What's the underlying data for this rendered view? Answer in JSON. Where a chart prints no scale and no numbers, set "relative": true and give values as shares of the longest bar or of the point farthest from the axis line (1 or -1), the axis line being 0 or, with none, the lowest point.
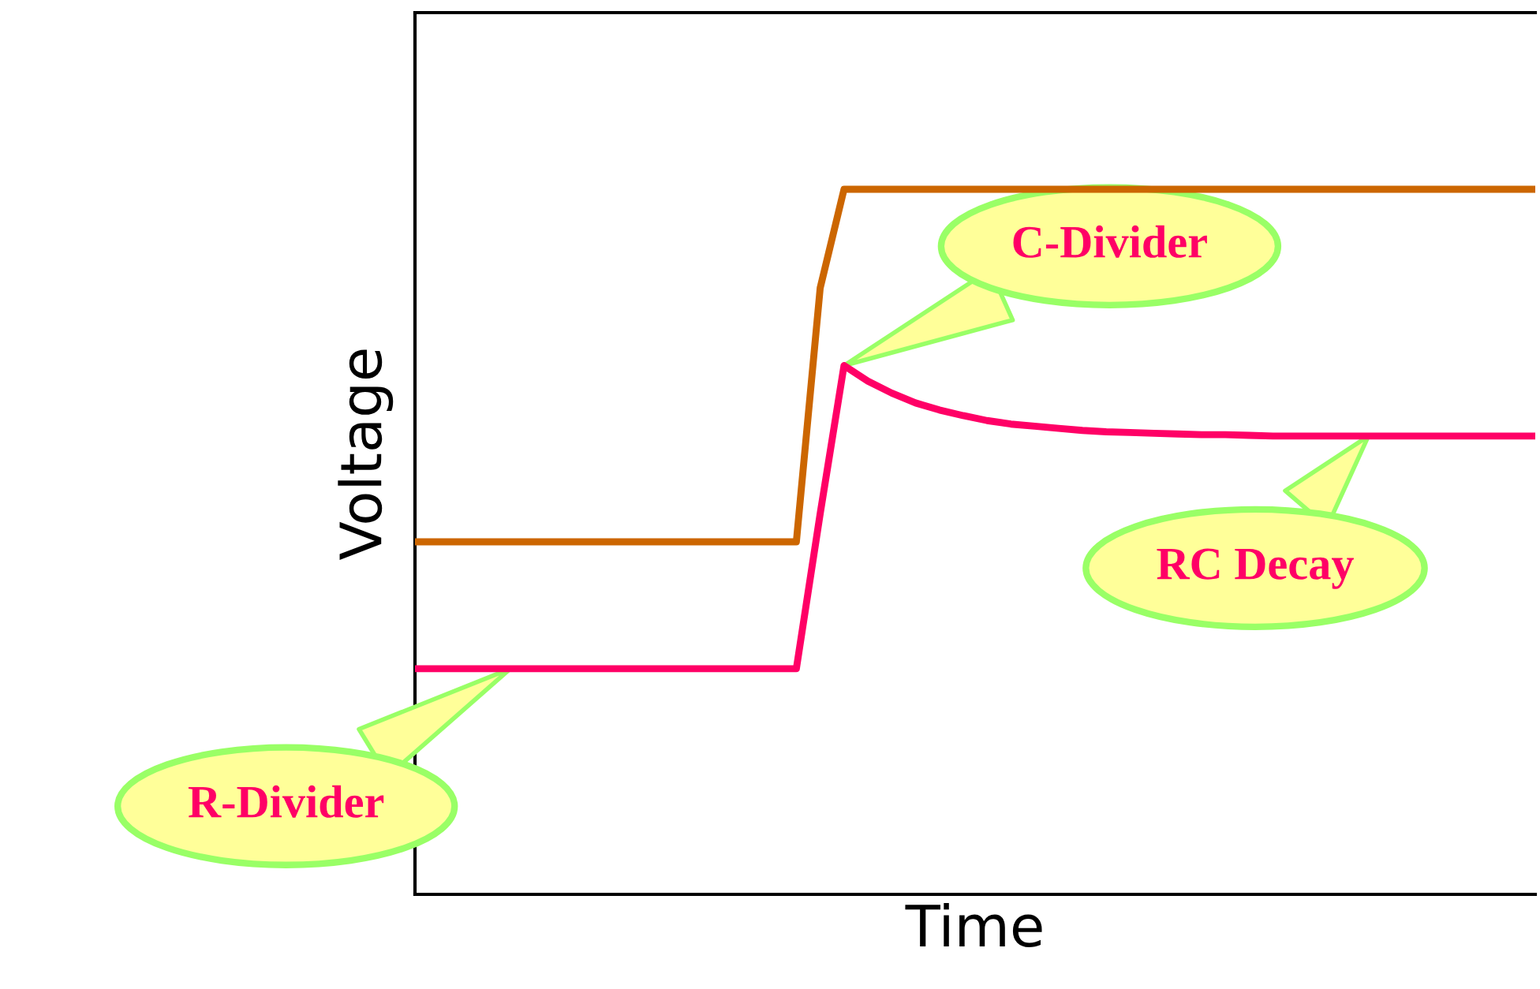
{
  "chart_data": {
    "type": "line",
    "relative": true,
    "xlabel": "Time",
    "ylabel": "Voltage",
    "categories": [
      null,
      null,
      null,
      null,
      null,
      null,
      null,
      null,
      null,
      null,
      null,
      null,
      null,
      null,
      null,
      null,
      null,
      null,
      null,
      null,
      null,
      null,
      null,
      null,
      null,
      null,
      null,
      null,
      null,
      null,
      null,
      null,
      null,
      null,
      null,
      null,
      null,
      null,
      null,
      null,
      null,
      null,
      null,
      null,
      null,
      null,
      null,
      null
    ],
    "series": [
      {
        "color": "#cc6600",
        "values": [
          0.5,
          0.5,
          0.5,
          0.5,
          0.5,
          0.5,
          0.5,
          0.5,
          0.5,
          0.5,
          0.5,
          0.5,
          0.5,
          0.5,
          0.5,
          0.5,
          0.5,
          0.86,
          1,
          1,
          1,
          1,
          1,
          1,
          1,
          1,
          1,
          1,
          1,
          1,
          1,
          1,
          1,
          1,
          1,
          1,
          1,
          1,
          1,
          1,
          1,
          1,
          1,
          1,
          1,
          1,
          1,
          1
        ]
      },
      {
        "color": "#ff0066",
        "values": [
          0.32,
          0.32,
          0.32,
          0.32,
          0.32,
          0.32,
          0.32,
          0.32,
          0.32,
          0.32,
          0.32,
          0.32,
          0.32,
          0.32,
          0.32,
          0.32,
          0.32,
          0.54,
          0.75,
          0.728,
          0.711,
          0.697,
          0.687,
          0.679,
          0.672,
          0.667,
          0.664,
          0.661,
          0.658,
          0.656,
          0.655,
          0.654,
          0.653,
          0.652,
          0.652,
          0.651,
          0.65,
          0.65,
          0.65,
          0.65,
          0.65,
          0.65,
          0.65,
          0.65,
          0.65,
          0.65,
          0.65,
          0.65
        ]
      }
    ],
    "annotations": [
      "C-Divider",
      "RC Decay",
      "R-Divider"
    ],
    "marker": "none",
    "line_style": "solid"
  }
}
